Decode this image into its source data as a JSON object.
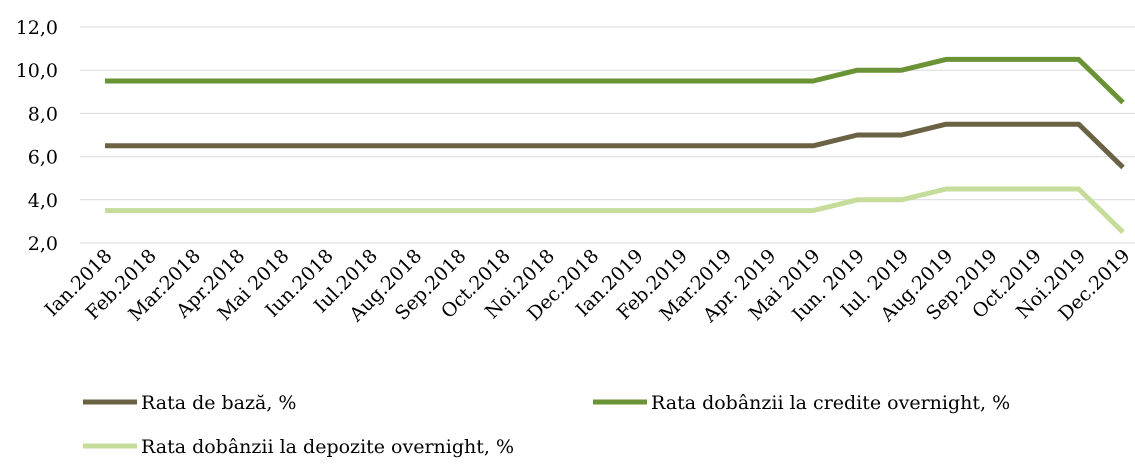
{
  "chart_data": {
    "type": "line",
    "title": "",
    "xlabel": "",
    "ylabel": "",
    "ylim": [
      2,
      12
    ],
    "yticks": [
      "2,0",
      "4,0",
      "6,0",
      "8,0",
      "10,0",
      "12,0"
    ],
    "ytick_values": [
      2,
      4,
      6,
      8,
      10,
      12
    ],
    "grid": true,
    "legend": "bottom",
    "categories": [
      "Ian.2018",
      "Feb.2018",
      "Mar.2018",
      "Apr.2018",
      "Mai 2018",
      "Iun.2018",
      "Iul.2018",
      "Aug.2018",
      "Sep.2018",
      "Oct.2018",
      "Noi.2018",
      "Dec.2018",
      "Ian.2019",
      "Feb.2019",
      "Mar.2019",
      "Apr. 2019",
      "Mai 2019",
      "Iun. 2019",
      "Iul. 2019",
      "Aug.2019",
      "Sep.2019",
      "Oct.2019",
      "Noi.2019",
      "Dec.2019"
    ],
    "series": [
      {
        "name": "Rata de bază, %",
        "color": "#6b6143",
        "values": [
          6.5,
          6.5,
          6.5,
          6.5,
          6.5,
          6.5,
          6.5,
          6.5,
          6.5,
          6.5,
          6.5,
          6.5,
          6.5,
          6.5,
          6.5,
          6.5,
          6.5,
          7.0,
          7.0,
          7.5,
          7.5,
          7.5,
          7.5,
          5.5
        ]
      },
      {
        "name": "Rata dobânzii la credite overnight, %",
        "color": "#6a9336",
        "values": [
          9.5,
          9.5,
          9.5,
          9.5,
          9.5,
          9.5,
          9.5,
          9.5,
          9.5,
          9.5,
          9.5,
          9.5,
          9.5,
          9.5,
          9.5,
          9.5,
          9.5,
          10.0,
          10.0,
          10.5,
          10.5,
          10.5,
          10.5,
          8.5
        ]
      },
      {
        "name": "Rata dobânzii la depozite overnight,  %",
        "color": "#c5dc9a",
        "values": [
          3.5,
          3.5,
          3.5,
          3.5,
          3.5,
          3.5,
          3.5,
          3.5,
          3.5,
          3.5,
          3.5,
          3.5,
          3.5,
          3.5,
          3.5,
          3.5,
          3.5,
          4.0,
          4.0,
          4.5,
          4.5,
          4.5,
          4.5,
          2.5
        ]
      }
    ]
  }
}
